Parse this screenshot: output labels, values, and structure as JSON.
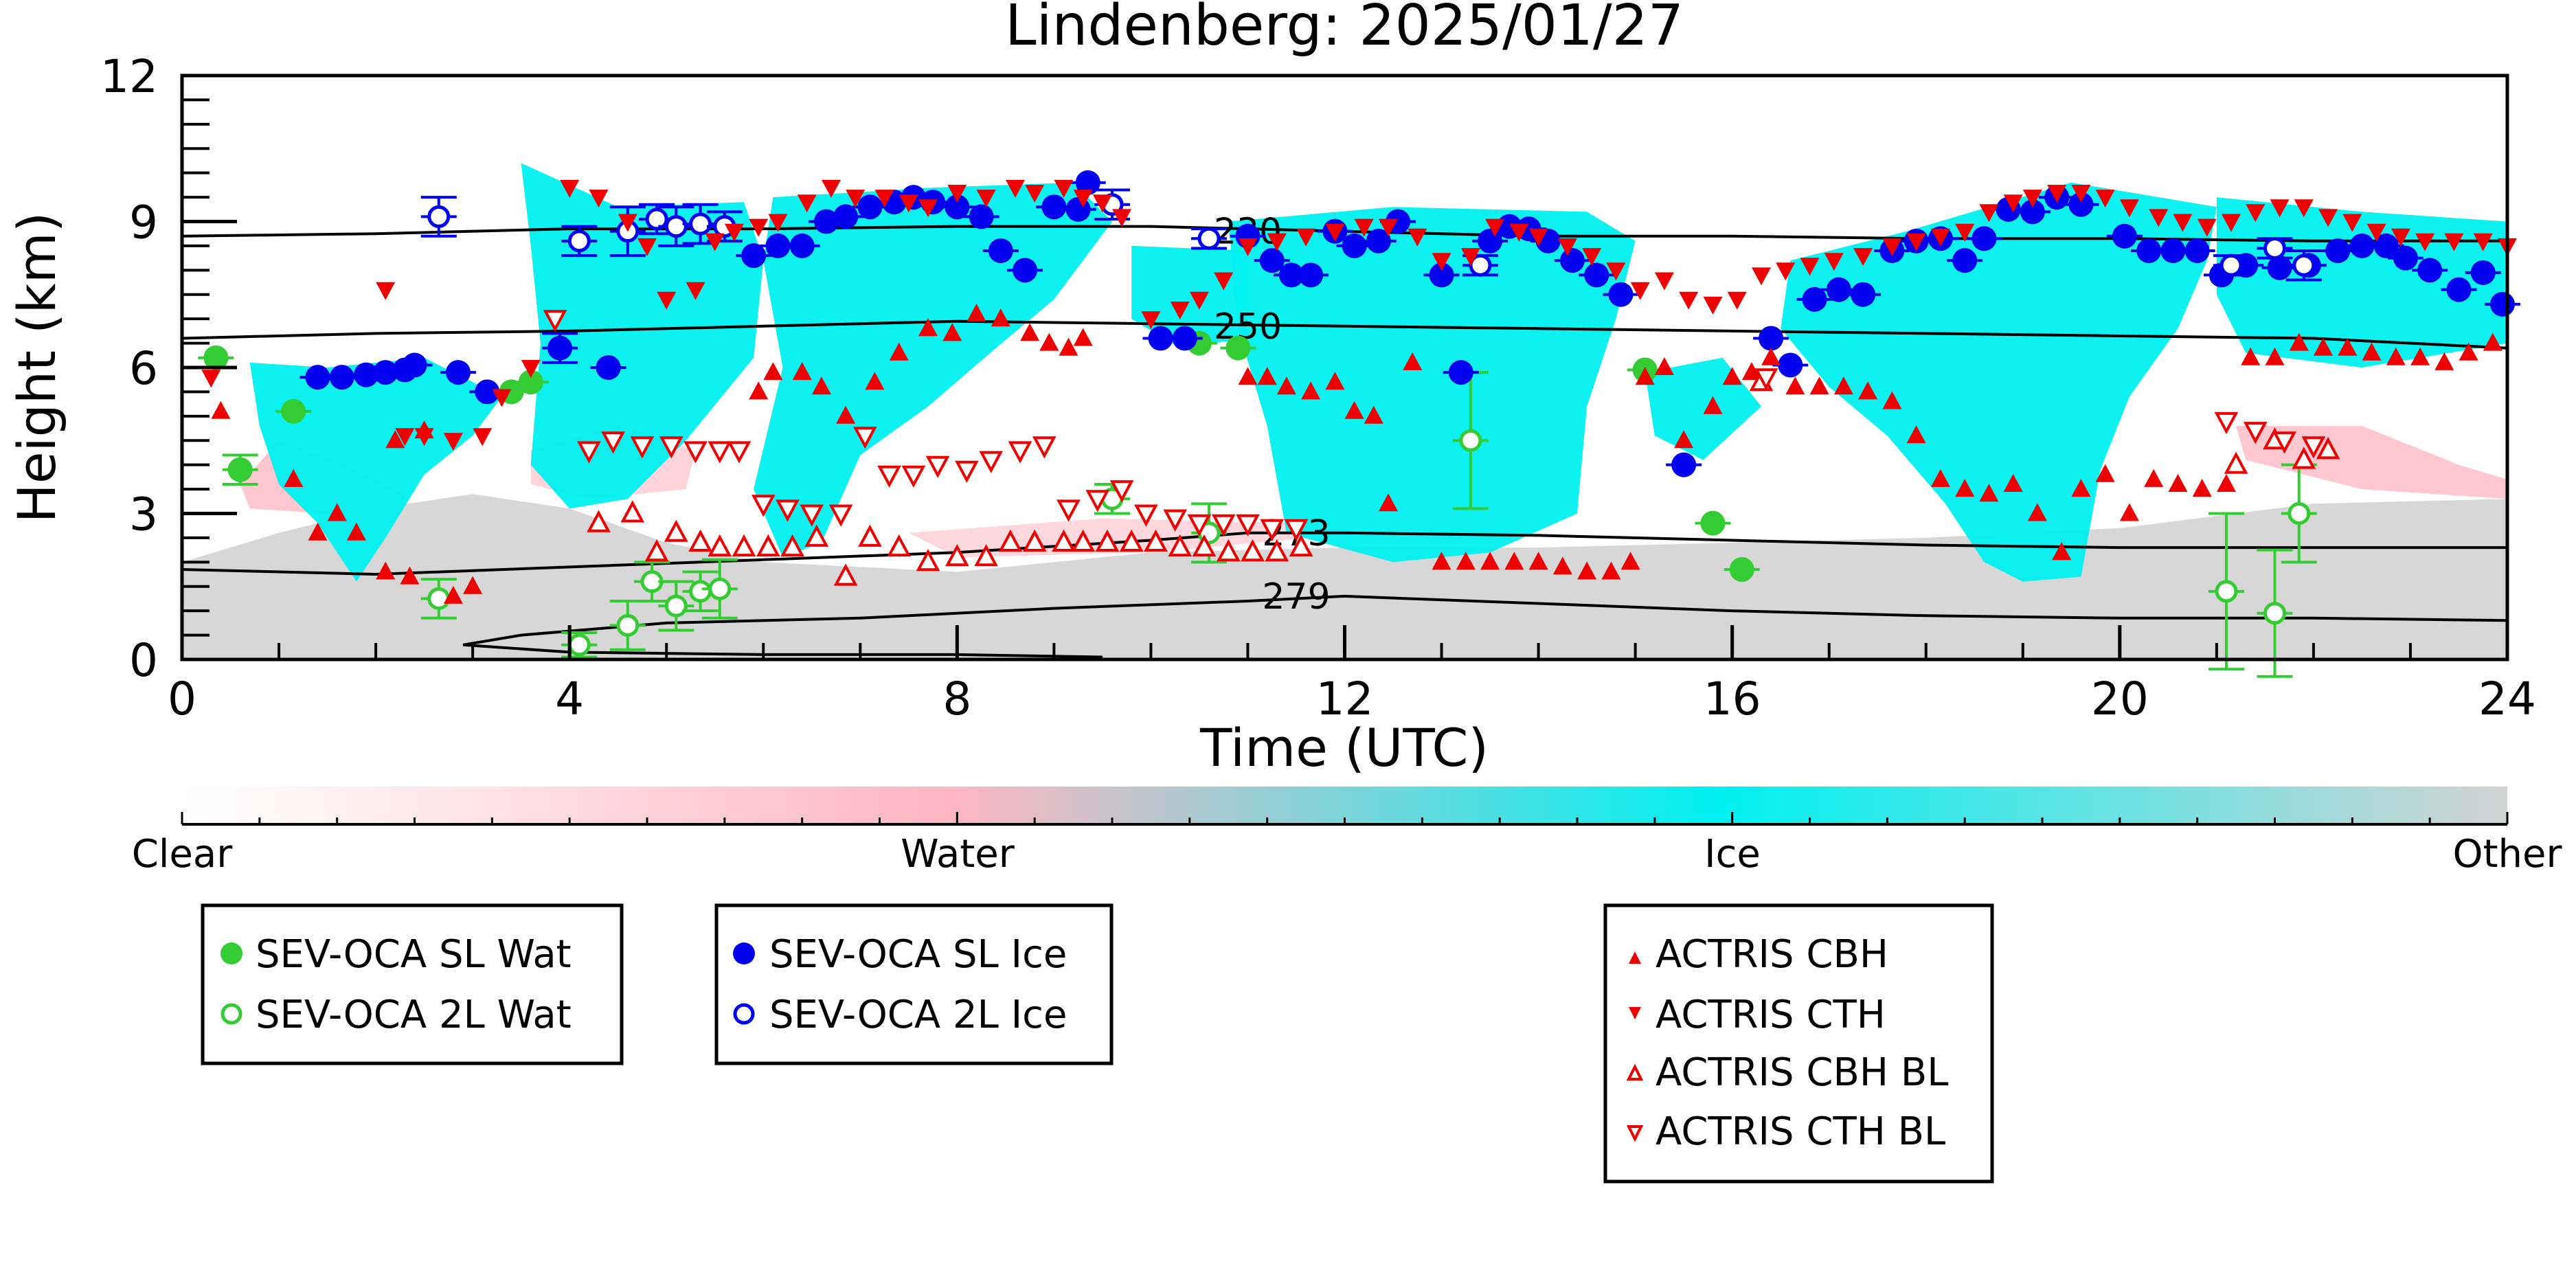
{
  "chart_data": {
    "type": "scatter",
    "title": "Lindenberg: 2025/01/27",
    "xlabel": "Time (UTC)",
    "ylabel": "Height (km)",
    "xlim": [
      0,
      24
    ],
    "ylim": [
      0,
      12
    ],
    "x_ticks": [
      0,
      4,
      8,
      12,
      16,
      20,
      24
    ],
    "y_ticks": [
      0,
      3,
      6,
      9,
      12
    ],
    "background_image": "lidar-radar cloud phase classification (Clear / Water / Ice / Other), ice cloud regions between ~1 and 10 km, 'Other' class in the lowest ~2 km",
    "colorbar": {
      "labels": [
        "Clear",
        "Water",
        "Ice",
        "Other"
      ],
      "colors": [
        "#ffffff",
        "#ffb6c1",
        "#00f0f0",
        "#d3d3d3"
      ]
    },
    "contours": [
      {
        "label": "230",
        "x": [
          0,
          2,
          4,
          6,
          8,
          10,
          12,
          14,
          16,
          18,
          20,
          22,
          24
        ],
        "y": [
          8.7,
          8.75,
          8.85,
          8.85,
          8.9,
          8.9,
          8.8,
          8.7,
          8.7,
          8.65,
          8.65,
          8.6,
          8.6
        ]
      },
      {
        "label": "250",
        "x": [
          0,
          2,
          4,
          6,
          8,
          10,
          12,
          14,
          16,
          18,
          20,
          22,
          24
        ],
        "y": [
          6.6,
          6.7,
          6.75,
          6.85,
          6.95,
          6.9,
          6.85,
          6.8,
          6.75,
          6.7,
          6.65,
          6.6,
          6.4
        ]
      },
      {
        "label": "273",
        "x": [
          0,
          2,
          4,
          6,
          8,
          10,
          11,
          12,
          14,
          16,
          18,
          20,
          22,
          24
        ],
        "y": [
          1.85,
          1.75,
          1.9,
          2.05,
          2.2,
          2.45,
          2.6,
          2.6,
          2.55,
          2.45,
          2.35,
          2.3,
          2.3,
          2.3
        ]
      },
      {
        "label": "279",
        "x": [
          2.9,
          3.5,
          5,
          7,
          9,
          11,
          12,
          14,
          16,
          18,
          20,
          22,
          24
        ],
        "y": [
          0.3,
          0.5,
          0.75,
          0.85,
          1.05,
          1.2,
          1.3,
          1.15,
          1.0,
          0.9,
          0.85,
          0.85,
          0.8
        ]
      },
      {
        "label": "",
        "x": [
          2.9,
          4,
          6,
          8,
          9.5
        ],
        "y": [
          0.3,
          0.15,
          0.1,
          0.1,
          0.05
        ]
      }
    ],
    "series": [
      {
        "name": "SEV-OCA SL Wat",
        "marker": "filled-circle",
        "color": "#33cc33",
        "x": [
          0.35,
          0.6,
          1.15,
          3.4,
          3.6,
          10.5,
          10.9,
          15.1,
          15.8,
          16.1
        ],
        "y": [
          6.2,
          3.9,
          5.1,
          5.5,
          5.7,
          6.5,
          6.4,
          5.95,
          2.8,
          1.85
        ],
        "err": [
          0,
          0.3,
          0,
          0,
          0,
          0,
          0,
          0,
          0,
          0
        ]
      },
      {
        "name": "SEV-OCA 2L Wat",
        "marker": "open-circle",
        "color": "#33cc33",
        "x": [
          2.65,
          4.1,
          4.6,
          4.85,
          5.1,
          5.35,
          5.55,
          9.6,
          10.6,
          13.3,
          21.1,
          21.6,
          21.85
        ],
        "y": [
          1.25,
          0.3,
          0.7,
          1.6,
          1.1,
          1.4,
          1.45,
          3.3,
          2.6,
          4.5,
          1.4,
          0.95,
          3.0
        ],
        "err": [
          0.4,
          0.25,
          0.5,
          0.4,
          0.5,
          0.4,
          0.6,
          0.3,
          0.6,
          1.4,
          1.6,
          1.3,
          1.0
        ]
      },
      {
        "name": "SEV-OCA SL Ice",
        "marker": "filled-circle",
        "color": "#0000ee",
        "x": [
          1.4,
          1.65,
          1.9,
          2.1,
          2.3,
          2.4,
          2.85,
          3.15,
          3.9,
          4.4,
          5.9,
          6.15,
          6.4,
          6.65,
          6.85,
          7.1,
          7.35,
          7.55,
          7.75,
          8.0,
          8.25,
          8.45,
          8.7,
          9.0,
          9.25,
          9.35,
          10.1,
          10.35,
          11.0,
          11.25,
          11.45,
          11.65,
          11.9,
          12.1,
          12.35,
          12.55,
          13.0,
          13.2,
          13.5,
          13.7,
          13.9,
          14.1,
          14.35,
          14.6,
          14.85,
          15.5,
          16.4,
          16.6,
          16.85,
          17.1,
          17.35,
          17.65,
          17.9,
          18.15,
          18.4,
          18.6,
          18.85,
          19.1,
          19.35,
          19.6,
          20.05,
          20.3,
          20.55,
          20.8,
          21.05,
          21.3,
          21.65,
          21.95,
          22.25,
          22.5,
          22.75,
          22.95,
          23.2,
          23.5,
          23.75,
          23.95
        ],
        "y": [
          5.8,
          5.8,
          5.85,
          5.9,
          5.95,
          6.05,
          5.9,
          5.5,
          6.4,
          6.0,
          8.3,
          8.5,
          8.5,
          9.0,
          9.1,
          9.3,
          9.4,
          9.5,
          9.4,
          9.3,
          9.1,
          8.4,
          8.0,
          9.3,
          9.25,
          9.8,
          6.6,
          6.6,
          8.7,
          8.2,
          7.9,
          7.9,
          8.8,
          8.5,
          8.6,
          9.0,
          7.9,
          5.9,
          8.6,
          8.9,
          8.85,
          8.6,
          8.2,
          7.9,
          7.5,
          4.0,
          6.6,
          6.05,
          7.4,
          7.6,
          7.5,
          8.4,
          8.6,
          8.65,
          8.2,
          8.65,
          9.25,
          9.2,
          9.5,
          9.35,
          8.7,
          8.4,
          8.4,
          8.4,
          7.9,
          8.1,
          8.05,
          8.1,
          8.4,
          8.5,
          8.5,
          8.25,
          8.0,
          7.6,
          7.95,
          7.3
        ],
        "err": [
          0,
          0,
          0,
          0,
          0,
          0,
          0,
          0,
          0.3,
          0,
          0,
          0,
          0,
          0,
          0,
          0,
          0,
          0,
          0,
          0,
          0,
          0,
          0,
          0,
          0,
          0,
          0,
          0,
          0,
          0,
          0,
          0,
          0,
          0,
          0,
          0,
          0,
          0,
          0,
          0,
          0,
          0,
          0,
          0,
          0,
          0,
          0,
          0,
          0,
          0,
          0,
          0,
          0,
          0,
          0,
          0,
          0,
          0,
          0,
          0,
          0,
          0,
          0,
          0,
          0,
          0,
          0,
          0,
          0,
          0,
          0,
          0,
          0,
          0,
          0,
          0
        ]
      },
      {
        "name": "SEV-OCA 2L Ice",
        "marker": "open-circle",
        "color": "#0000ee",
        "x": [
          2.65,
          4.1,
          4.6,
          4.9,
          5.1,
          5.35,
          5.6,
          9.6,
          10.6,
          13.4,
          21.15,
          21.6,
          21.9
        ],
        "y": [
          9.1,
          8.6,
          8.8,
          9.05,
          8.9,
          8.95,
          8.9,
          9.35,
          8.65,
          8.1,
          8.1,
          8.45,
          8.1
        ],
        "err": [
          0.4,
          0.3,
          0.5,
          0.3,
          0.4,
          0.4,
          0.3,
          0.3,
          0.2,
          0.2,
          0.2,
          0.2,
          0.3
        ]
      },
      {
        "name": "ACTRIS CBH",
        "marker": "filled-triangle-up",
        "color": "#ee0000",
        "x": [
          0.4,
          1.15,
          1.4,
          1.6,
          1.8,
          2.1,
          2.2,
          2.35,
          2.5,
          2.8,
          3.0,
          5.95,
          6.1,
          6.4,
          6.6,
          6.85,
          7.15,
          7.4,
          7.7,
          7.95,
          8.2,
          8.45,
          8.75,
          8.95,
          9.15,
          9.3,
          11.0,
          11.2,
          11.4,
          11.65,
          11.9,
          12.1,
          12.3,
          12.45,
          12.7,
          13.0,
          13.25,
          13.5,
          13.75,
          14.0,
          14.25,
          14.5,
          14.75,
          14.95,
          15.1,
          15.3,
          15.5,
          15.8,
          16.0,
          16.2,
          16.4,
          16.65,
          16.9,
          17.15,
          17.4,
          17.65,
          17.9,
          18.15,
          18.4,
          18.65,
          18.9,
          19.15,
          19.4,
          19.6,
          19.85,
          20.1,
          20.35,
          20.6,
          20.85,
          21.1,
          21.35,
          21.6,
          21.85,
          22.1,
          22.35,
          22.6,
          22.85,
          23.1,
          23.35,
          23.6,
          23.85
        ],
        "y": [
          5.1,
          3.7,
          2.6,
          3.0,
          2.6,
          1.8,
          4.5,
          1.7,
          4.7,
          1.3,
          1.5,
          5.5,
          5.9,
          5.9,
          5.6,
          5.0,
          5.7,
          6.3,
          6.8,
          6.7,
          7.1,
          7.0,
          6.7,
          6.5,
          6.4,
          6.6,
          5.8,
          5.8,
          5.6,
          5.5,
          5.7,
          5.1,
          5.0,
          3.2,
          6.1,
          2.0,
          2.0,
          2.0,
          2.0,
          2.0,
          1.9,
          1.8,
          1.8,
          2.0,
          5.8,
          6.0,
          4.5,
          5.2,
          5.8,
          5.9,
          6.2,
          5.6,
          5.6,
          5.6,
          5.5,
          5.3,
          4.6,
          3.7,
          3.5,
          3.4,
          3.6,
          3.0,
          2.2,
          3.5,
          3.8,
          3.0,
          3.7,
          3.6,
          3.5,
          3.6,
          6.2,
          6.2,
          6.5,
          6.4,
          6.4,
          6.3,
          6.2,
          6.2,
          6.1,
          6.3,
          6.5
        ],
        "err": []
      },
      {
        "name": "ACTRIS CTH",
        "marker": "filled-triangle-down",
        "color": "#ee0000",
        "x": [
          0.3,
          2.1,
          2.3,
          2.5,
          2.8,
          3.1,
          3.3,
          3.6,
          4.0,
          4.3,
          4.6,
          4.8,
          5.0,
          5.3,
          5.5,
          5.7,
          5.95,
          6.15,
          6.45,
          6.7,
          6.95,
          7.25,
          7.5,
          7.7,
          8.0,
          8.3,
          8.6,
          8.8,
          9.1,
          9.3,
          9.5,
          9.7,
          10.0,
          10.3,
          10.5,
          10.75,
          11.0,
          11.3,
          11.6,
          11.9,
          12.2,
          12.45,
          12.75,
          13.0,
          13.3,
          13.55,
          13.8,
          14.0,
          14.3,
          14.55,
          14.8,
          15.05,
          15.3,
          15.55,
          15.8,
          16.05,
          16.3,
          16.55,
          16.8,
          17.05,
          17.35,
          17.65,
          17.9,
          18.15,
          18.4,
          18.65,
          18.9,
          19.1,
          19.35,
          19.6,
          19.85,
          20.1,
          20.4,
          20.65,
          20.9,
          21.15,
          21.4,
          21.65,
          21.9,
          22.15,
          22.4,
          22.65,
          22.9,
          23.15,
          23.45,
          23.75,
          24.0
        ],
        "y": [
          5.8,
          7.6,
          4.6,
          4.6,
          4.5,
          4.6,
          5.4,
          6.0,
          9.7,
          9.5,
          9.0,
          8.5,
          7.4,
          7.6,
          8.6,
          8.8,
          8.9,
          9.0,
          9.4,
          9.7,
          9.5,
          9.5,
          9.4,
          9.3,
          9.6,
          9.5,
          9.7,
          9.6,
          9.7,
          9.5,
          9.4,
          9.1,
          7.0,
          7.2,
          7.4,
          7.8,
          8.5,
          8.6,
          8.7,
          8.8,
          8.9,
          8.9,
          8.7,
          8.2,
          8.3,
          8.9,
          8.8,
          8.7,
          8.5,
          8.3,
          8.0,
          7.6,
          7.8,
          7.4,
          7.3,
          7.4,
          7.9,
          8.0,
          8.1,
          8.2,
          8.3,
          8.5,
          8.6,
          8.7,
          8.8,
          9.2,
          9.4,
          9.5,
          9.6,
          9.6,
          9.5,
          9.3,
          9.1,
          9.0,
          8.9,
          9.0,
          9.2,
          9.3,
          9.3,
          9.1,
          9.0,
          8.8,
          8.7,
          8.6,
          8.6,
          8.6,
          8.5
        ],
        "err": []
      },
      {
        "name": "ACTRIS CBH BL",
        "marker": "open-triangle-up",
        "color": "#ee0000",
        "x": [
          4.3,
          4.65,
          4.9,
          5.1,
          5.35,
          5.55,
          5.8,
          6.05,
          6.3,
          6.55,
          6.85,
          7.1,
          7.4,
          7.7,
          8.0,
          8.3,
          8.55,
          8.8,
          9.1,
          9.3,
          9.55,
          9.8,
          10.05,
          10.3,
          10.55,
          10.8,
          11.05,
          11.3,
          11.55,
          16.3,
          21.2,
          21.6,
          21.9,
          22.15
        ],
        "y": [
          2.8,
          3.0,
          2.2,
          2.6,
          2.4,
          2.3,
          2.3,
          2.3,
          2.3,
          2.5,
          1.7,
          2.5,
          2.3,
          2.0,
          2.1,
          2.1,
          2.4,
          2.4,
          2.4,
          2.4,
          2.4,
          2.4,
          2.4,
          2.3,
          2.3,
          2.2,
          2.2,
          2.2,
          2.3,
          5.7,
          4.0,
          4.5,
          4.1,
          4.3
        ],
        "err": []
      },
      {
        "name": "ACTRIS CTH BL",
        "marker": "open-triangle-down",
        "color": "#ee0000",
        "x": [
          3.85,
          4.2,
          4.45,
          4.75,
          5.05,
          5.3,
          5.55,
          5.75,
          6.0,
          6.25,
          6.5,
          6.8,
          7.05,
          7.3,
          7.55,
          7.8,
          8.1,
          8.35,
          8.65,
          8.9,
          9.15,
          9.45,
          9.7,
          9.95,
          10.25,
          10.5,
          10.75,
          11.0,
          11.25,
          11.5,
          16.35,
          21.1,
          21.4,
          21.7,
          22.0
        ],
        "y": [
          7.0,
          4.3,
          4.5,
          4.4,
          4.4,
          4.3,
          4.3,
          4.3,
          3.2,
          3.1,
          3.0,
          3.0,
          4.6,
          3.8,
          3.8,
          4.0,
          3.9,
          4.1,
          4.3,
          4.4,
          3.1,
          3.3,
          3.5,
          3.0,
          2.9,
          2.8,
          2.8,
          2.8,
          2.7,
          2.7,
          5.8,
          4.9,
          4.7,
          4.5,
          4.4
        ],
        "err": []
      }
    ],
    "legend": {
      "placement": "below plot",
      "groups": [
        [
          "SEV-OCA SL Wat",
          "SEV-OCA 2L Wat"
        ],
        [
          "SEV-OCA SL Ice",
          "SEV-OCA 2L Ice"
        ],
        [
          "ACTRIS CBH",
          "ACTRIS CTH",
          "ACTRIS CBH BL",
          "ACTRIS CTH BL"
        ]
      ]
    }
  }
}
